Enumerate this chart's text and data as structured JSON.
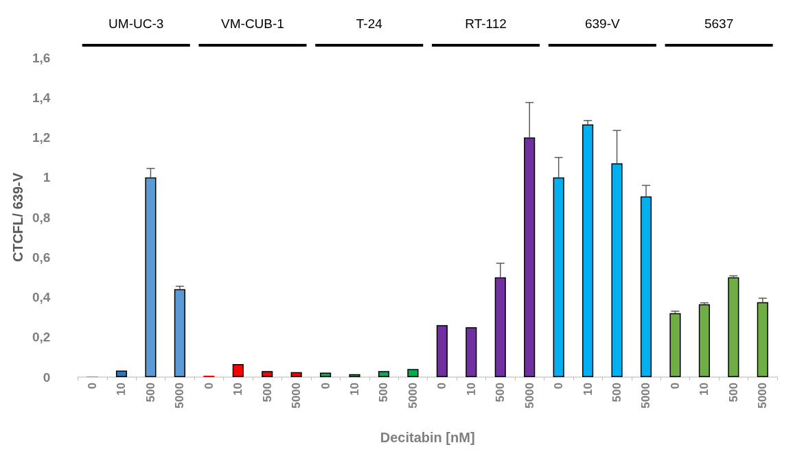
{
  "chart_data": {
    "type": "bar",
    "xlabel": "Decitabin [nM]",
    "ylabel": "CTCFL/ 639-V",
    "categories": [
      "0",
      "10",
      "500",
      "5000",
      "0",
      "10",
      "500",
      "5000",
      "0",
      "10",
      "500",
      "5000",
      "0",
      "10",
      "500",
      "5000",
      "0",
      "10",
      "500",
      "5000",
      "0",
      "10",
      "500",
      "5000"
    ],
    "values": [
      0.003,
      0.033,
      1.0,
      0.44,
      0.007,
      0.065,
      0.03,
      0.025,
      0.022,
      0.015,
      0.03,
      0.04,
      0.26,
      0.25,
      0.5,
      1.2,
      1.0,
      1.265,
      1.07,
      0.905,
      0.32,
      0.365,
      0.5,
      0.375
    ],
    "colors": [
      "#5b9bd5",
      "#2e75b6",
      "#5b9bd5",
      "#5b9bd5",
      "#ff0000",
      "#ff0000",
      "#ff0000",
      "#ff0000",
      "#00b050",
      "#00b050",
      "#00b050",
      "#00b050",
      "#7030a0",
      "#7030a0",
      "#7030a0",
      "#7030a0",
      "#00b0f0",
      "#00b0f0",
      "#00b0f0",
      "#00b0f0",
      "#70ad47",
      "#70ad47",
      "#70ad47",
      "#70ad47"
    ],
    "errors": [
      null,
      null,
      [
        1.0,
        1.045
      ],
      [
        0.44,
        0.455
      ],
      null,
      null,
      null,
      null,
      null,
      null,
      null,
      null,
      null,
      null,
      [
        0.5,
        0.57
      ],
      [
        1.2,
        1.375
      ],
      [
        1.0,
        1.1
      ],
      [
        1.265,
        1.285
      ],
      [
        1.07,
        1.235
      ],
      [
        0.905,
        0.96
      ],
      [
        0.32,
        0.33
      ],
      [
        0.365,
        0.372
      ],
      [
        0.5,
        0.507
      ],
      [
        0.375,
        0.395
      ]
    ],
    "ylim": [
      0,
      1.6
    ],
    "yticks": [
      0,
      {
        "value": 0.2,
        "label": "0,2"
      },
      {
        "value": 0.4,
        "label": "0,4"
      },
      {
        "value": 0.6,
        "label": "0,6"
      },
      {
        "value": 0.8,
        "label": "0,8"
      },
      1,
      {
        "value": 1.2,
        "label": "1,2"
      },
      {
        "value": 1.4,
        "label": "1,4"
      },
      {
        "value": 1.6,
        "label": "1,6"
      }
    ],
    "grid": false,
    "annotations": [
      "UM-UC-3",
      "VM-CUB-1",
      "T-24",
      "RT-112",
      "639-V",
      "5637"
    ]
  }
}
